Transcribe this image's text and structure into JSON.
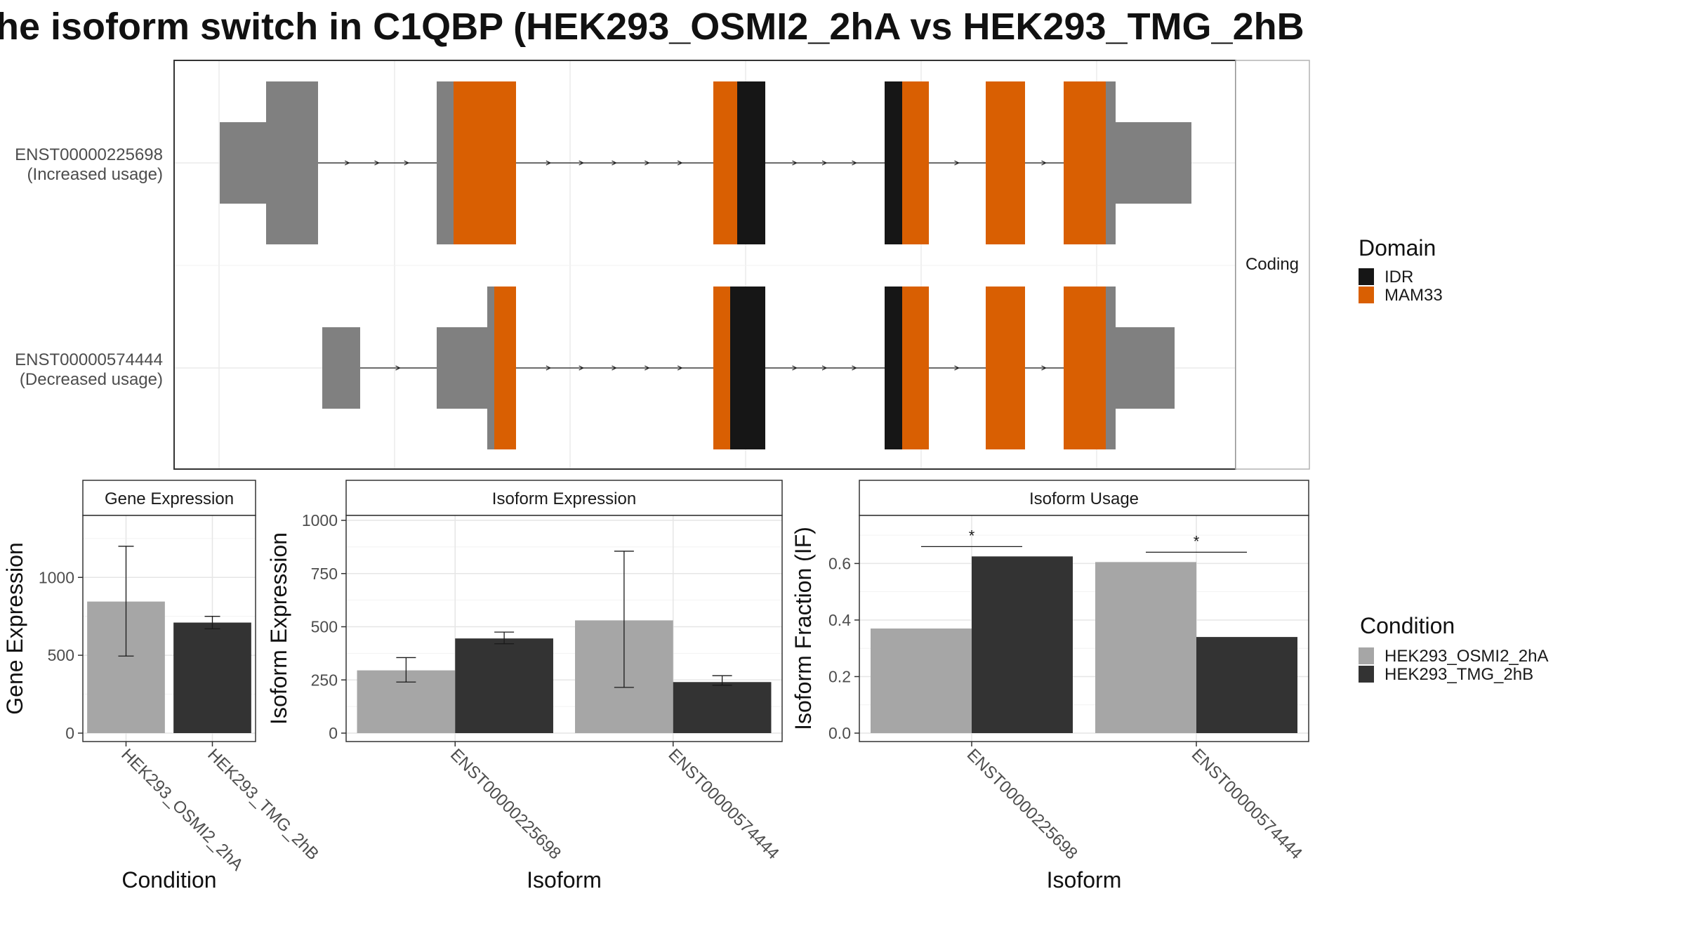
{
  "title": "he isoform switch in C1QBP (HEK293_OSMI2_2hA vs HEK293_TMG_2hB",
  "colors": {
    "IDR": "#161616",
    "MAM33": "#d95f02",
    "noncoding": "#808080",
    "HEK293_OSMI2_2hA": "#a6a6a6",
    "HEK293_TMG_2hB": "#333333"
  },
  "legend_domain": {
    "title": "Domain",
    "items": [
      {
        "label": "IDR",
        "color_key": "IDR"
      },
      {
        "label": "MAM33",
        "color_key": "MAM33"
      }
    ]
  },
  "legend_condition": {
    "title": "Condition",
    "items": [
      {
        "label": "HEK293_OSMI2_2hA",
        "color_key": "HEK293_OSMI2_2hA"
      },
      {
        "label": "HEK293_TMG_2hB",
        "color_key": "HEK293_TMG_2hB"
      }
    ]
  },
  "structure": {
    "strip_label": "Coding",
    "transcripts": [
      {
        "label_line1": "ENST00000225698",
        "label_line2": "(Increased usage)",
        "segments": [
          {
            "start": 65,
            "end": 131,
            "type": "noncoding",
            "thin": true
          },
          {
            "start": 131,
            "end": 205,
            "type": "noncoding",
            "thin": false
          },
          {
            "start": 374,
            "end": 398,
            "type": "noncoding",
            "thin": false
          },
          {
            "start": 398,
            "end": 487,
            "type": "MAM33",
            "thin": false
          },
          {
            "start": 768,
            "end": 802,
            "type": "MAM33",
            "thin": false
          },
          {
            "start": 802,
            "end": 842,
            "type": "IDR",
            "thin": false
          },
          {
            "start": 1012,
            "end": 1037,
            "type": "IDR",
            "thin": false
          },
          {
            "start": 1037,
            "end": 1075,
            "type": "MAM33",
            "thin": false
          },
          {
            "start": 1156,
            "end": 1212,
            "type": "MAM33",
            "thin": false
          },
          {
            "start": 1267,
            "end": 1327,
            "type": "MAM33",
            "thin": false
          },
          {
            "start": 1327,
            "end": 1341,
            "type": "noncoding",
            "thin": false
          },
          {
            "start": 1341,
            "end": 1449,
            "type": "noncoding",
            "thin": true
          }
        ],
        "intron_start": 205,
        "intron_end": 1267
      },
      {
        "label_line1": "ENST00000574444",
        "label_line2": "(Decreased usage)",
        "segments": [
          {
            "start": 211,
            "end": 265,
            "type": "noncoding",
            "thin": true
          },
          {
            "start": 374,
            "end": 446,
            "type": "noncoding",
            "thin": true
          },
          {
            "start": 446,
            "end": 456,
            "type": "noncoding",
            "thin": false
          },
          {
            "start": 456,
            "end": 487,
            "type": "MAM33",
            "thin": false
          },
          {
            "start": 768,
            "end": 792,
            "type": "MAM33",
            "thin": false
          },
          {
            "start": 792,
            "end": 842,
            "type": "IDR",
            "thin": false
          },
          {
            "start": 1012,
            "end": 1037,
            "type": "IDR",
            "thin": false
          },
          {
            "start": 1037,
            "end": 1075,
            "type": "MAM33",
            "thin": false
          },
          {
            "start": 1156,
            "end": 1212,
            "type": "MAM33",
            "thin": false
          },
          {
            "start": 1267,
            "end": 1327,
            "type": "MAM33",
            "thin": false
          },
          {
            "start": 1327,
            "end": 1341,
            "type": "noncoding",
            "thin": false
          },
          {
            "start": 1341,
            "end": 1425,
            "type": "noncoding",
            "thin": true
          }
        ],
        "intron_start": 265,
        "intron_end": 1267
      }
    ]
  },
  "chart_data": [
    {
      "type": "bar",
      "title": "Gene Expression",
      "xlabel": "Condition",
      "ylabel": "Gene Expression",
      "categories": [
        "HEK293_OSMI2_2hA",
        "HEK293_TMG_2hB"
      ],
      "values": [
        845,
        710
      ],
      "error_low": [
        495,
        670
      ],
      "error_high": [
        1200,
        750
      ],
      "ylim": [
        0,
        1380
      ],
      "yticks": [
        0,
        500,
        1000
      ]
    },
    {
      "type": "bar",
      "title": "Isoform Expression",
      "xlabel": "Isoform",
      "ylabel": "Isoform Expression",
      "categories": [
        "ENST00000225698",
        "ENST00000574444"
      ],
      "series": [
        {
          "name": "HEK293_OSMI2_2hA",
          "values": [
            295,
            530
          ],
          "error_low": [
            240,
            215
          ],
          "error_high": [
            355,
            855
          ]
        },
        {
          "name": "HEK293_TMG_2hB",
          "values": [
            445,
            240
          ],
          "error_low": [
            420,
            225
          ],
          "error_high": [
            475,
            270
          ]
        }
      ],
      "ylim": [
        0,
        1010
      ],
      "yticks": [
        0,
        250,
        500,
        750,
        1000
      ]
    },
    {
      "type": "bar",
      "title": "Isoform Usage",
      "xlabel": "Isoform",
      "ylabel": "Isoform Fraction (IF)",
      "categories": [
        "ENST00000225698",
        "ENST00000574444"
      ],
      "series": [
        {
          "name": "HEK293_OSMI2_2hA",
          "values": [
            0.37,
            0.605
          ]
        },
        {
          "name": "HEK293_TMG_2hB",
          "values": [
            0.625,
            0.34
          ]
        }
      ],
      "significance": [
        "*",
        "*"
      ],
      "ylim": [
        0,
        0.76
      ],
      "yticks": [
        0.0,
        0.2,
        0.4,
        0.6
      ],
      "ytick_labels": [
        "0.0",
        "0.2",
        "0.4",
        "0.6"
      ]
    }
  ]
}
